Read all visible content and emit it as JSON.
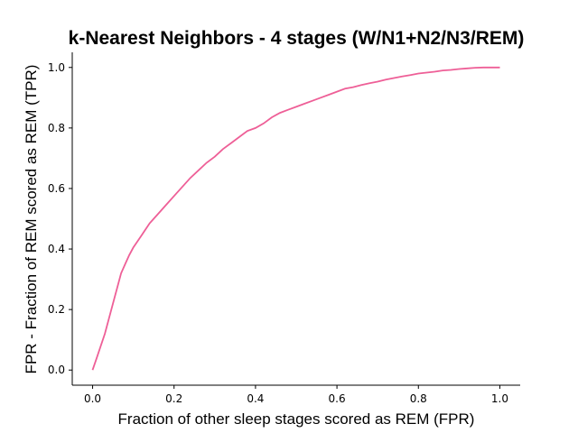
{
  "chart_data": {
    "type": "line",
    "title": "k-Nearest Neighbors - 4 stages (W/N1+N2/N3/REM)",
    "xlabel": "Fraction of other sleep stages scored as REM (FPR)",
    "ylabel": "FPR - Fraction of REM scored as REM (TPR)",
    "xlim": [
      -0.05,
      1.05
    ],
    "ylim": [
      -0.05,
      1.05
    ],
    "xticks": [
      "0.0",
      "0.2",
      "0.4",
      "0.6",
      "0.8",
      "1.0"
    ],
    "yticks": [
      "0.0",
      "0.2",
      "0.4",
      "0.6",
      "0.8",
      "1.0"
    ],
    "grid": false,
    "legend": "none",
    "series": [
      {
        "color": "#ee5f97",
        "x": [
          0.0,
          0.01,
          0.02,
          0.03,
          0.04,
          0.05,
          0.06,
          0.07,
          0.08,
          0.09,
          0.1,
          0.11,
          0.12,
          0.13,
          0.14,
          0.15,
          0.16,
          0.18,
          0.2,
          0.22,
          0.24,
          0.26,
          0.28,
          0.3,
          0.32,
          0.34,
          0.36,
          0.38,
          0.4,
          0.42,
          0.44,
          0.46,
          0.48,
          0.5,
          0.52,
          0.54,
          0.56,
          0.58,
          0.6,
          0.62,
          0.64,
          0.66,
          0.68,
          0.7,
          0.72,
          0.74,
          0.76,
          0.78,
          0.8,
          0.82,
          0.84,
          0.86,
          0.88,
          0.9,
          0.92,
          0.94,
          0.96,
          0.98,
          1.0
        ],
        "y": [
          0.0,
          0.04,
          0.08,
          0.12,
          0.17,
          0.22,
          0.27,
          0.32,
          0.35,
          0.38,
          0.405,
          0.425,
          0.445,
          0.465,
          0.485,
          0.5,
          0.515,
          0.545,
          0.575,
          0.605,
          0.635,
          0.66,
          0.685,
          0.705,
          0.73,
          0.75,
          0.77,
          0.79,
          0.8,
          0.815,
          0.835,
          0.85,
          0.86,
          0.87,
          0.88,
          0.89,
          0.9,
          0.91,
          0.92,
          0.93,
          0.935,
          0.942,
          0.948,
          0.953,
          0.96,
          0.965,
          0.97,
          0.975,
          0.98,
          0.983,
          0.986,
          0.99,
          0.992,
          0.995,
          0.997,
          0.999,
          1.0,
          1.0,
          1.0
        ]
      }
    ]
  }
}
